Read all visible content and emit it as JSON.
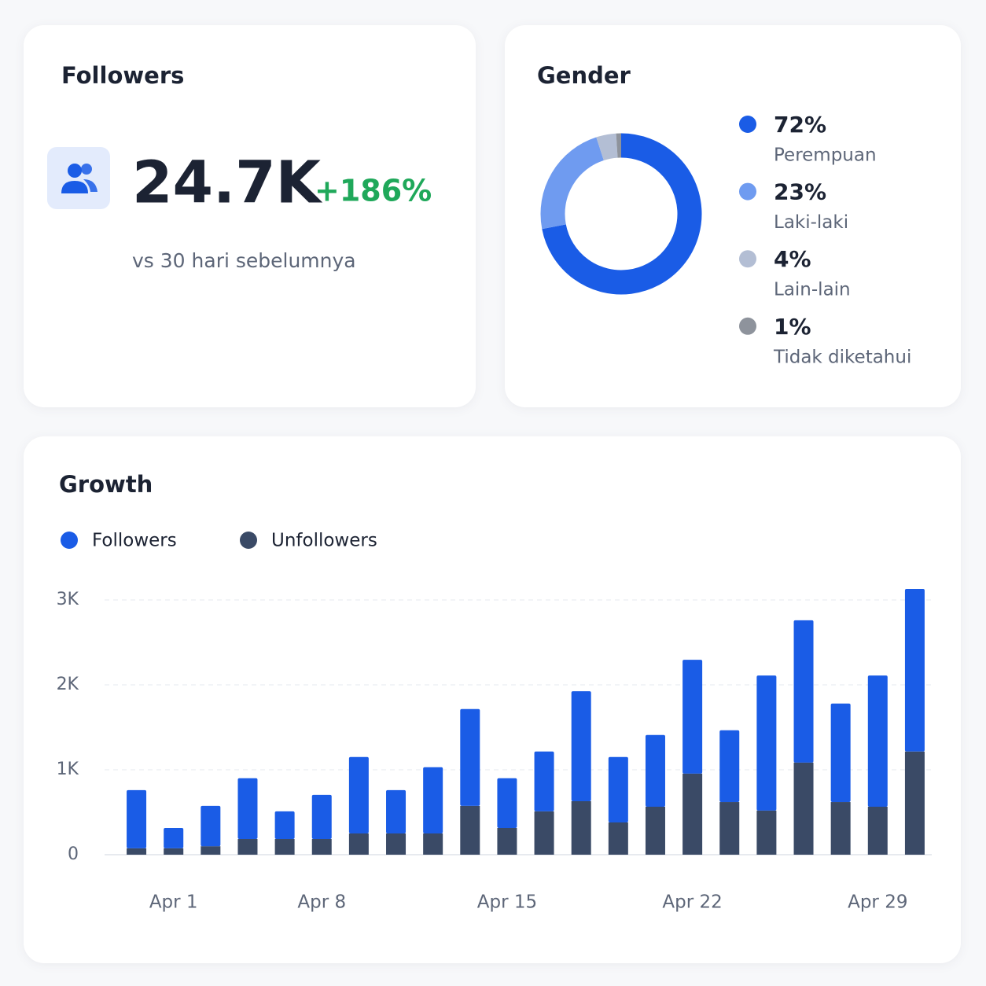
{
  "followers": {
    "title": "Followers",
    "value": "24.7K",
    "change": "+186%",
    "subtitle": "vs 30 hari sebelumnya"
  },
  "chart_data": [
    {
      "type": "pie",
      "title": "Gender",
      "donut": true,
      "categories": [
        "Perempuan",
        "Laki-laki",
        "Lain-lain",
        "Tidak diketahui"
      ],
      "values": [
        72,
        23,
        4,
        1
      ],
      "value_labels": [
        "72%",
        "23%",
        "4%",
        "1%"
      ],
      "colors": [
        "#1a5ce6",
        "#6f9bf0",
        "#b3bed4",
        "#8e939c"
      ]
    },
    {
      "type": "stacked-bar",
      "title": "Growth",
      "categories": [
        null,
        "Apr 1",
        null,
        null,
        null,
        "Apr 8",
        null,
        null,
        null,
        null,
        "Apr 15",
        null,
        null,
        null,
        null,
        "Apr 22",
        null,
        null,
        null,
        null,
        "Apr 29",
        null
      ],
      "series": [
        {
          "name": "Followers",
          "color": "#1a5ce6",
          "values": [
            685,
            240,
            475,
            715,
            325,
            520,
            900,
            510,
            780,
            1140,
            585,
            705,
            1295,
            770,
            845,
            1340,
            845,
            1590,
            1675,
            1160,
            1545,
            1915
          ]
        },
        {
          "name": "Unfollowers",
          "color": "#3a4a66",
          "values": [
            75,
            75,
            100,
            185,
            185,
            185,
            250,
            250,
            250,
            575,
            315,
            510,
            630,
            380,
            565,
            955,
            620,
            520,
            1085,
            620,
            565,
            1215
          ]
        }
      ],
      "ylim": [
        0,
        3200
      ],
      "yticks": [
        {
          "value": 0,
          "label": "0"
        },
        {
          "value": 1000,
          "label": "1K"
        },
        {
          "value": 2000,
          "label": "2K"
        },
        {
          "value": 3000,
          "label": "3K"
        }
      ],
      "grid": true
    }
  ]
}
